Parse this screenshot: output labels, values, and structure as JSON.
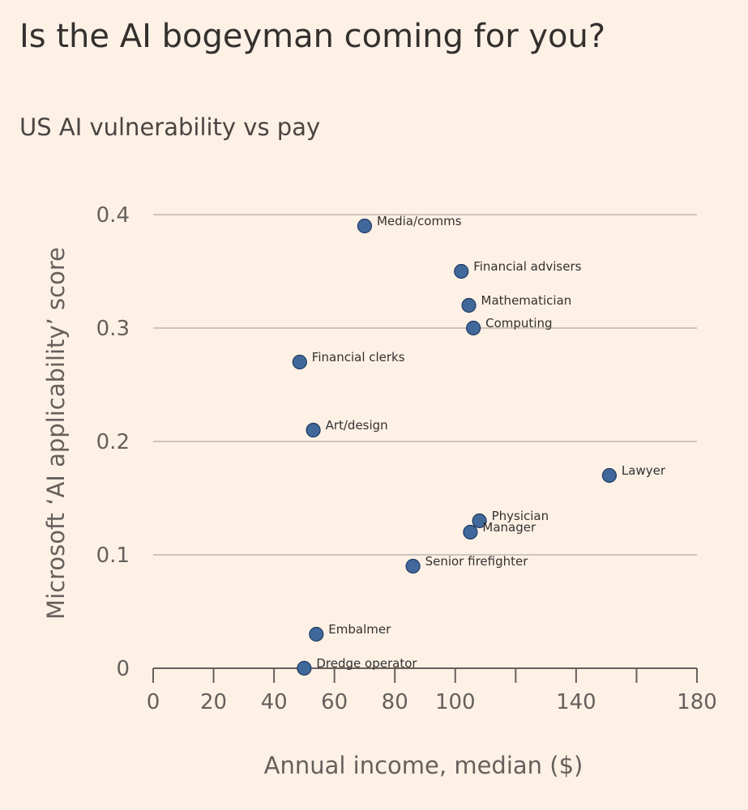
{
  "chart_data": {
    "type": "scatter",
    "title": "Is the AI bogeyman coming for you?",
    "subtitle": "US AI vulnerability vs pay",
    "xlabel": "Annual income, median ($)",
    "ylabel": "Microsoft ‘AI applicability’ score",
    "xlim": [
      0,
      180
    ],
    "ylim": [
      0,
      0.4
    ],
    "x_ticks": [
      0,
      20,
      40,
      60,
      80,
      100,
      120,
      140,
      160,
      180
    ],
    "x_tick_labels": [
      "0",
      "20",
      "40",
      "60",
      "80",
      "100",
      "",
      "140",
      "",
      "180"
    ],
    "y_ticks": [
      0,
      0.1,
      0.2,
      0.3,
      0.4
    ],
    "y_tick_labels": [
      "0",
      "0.1",
      "0.2",
      "0.3",
      "0.4"
    ],
    "grid": "horizontal",
    "marker_color": "#41689b",
    "points": [
      {
        "label": "Media/comms",
        "x": 70,
        "y": 0.39
      },
      {
        "label": "Financial advisers",
        "x": 102,
        "y": 0.35
      },
      {
        "label": "Mathematician",
        "x": 104.5,
        "y": 0.32
      },
      {
        "label": "Computing",
        "x": 106,
        "y": 0.3
      },
      {
        "label": "Financial clerks",
        "x": 48.5,
        "y": 0.27
      },
      {
        "label": "Art/design",
        "x": 53,
        "y": 0.21
      },
      {
        "label": "Lawyer",
        "x": 151,
        "y": 0.17
      },
      {
        "label": "Physician",
        "x": 108,
        "y": 0.13
      },
      {
        "label": "Manager",
        "x": 105,
        "y": 0.12
      },
      {
        "label": "Senior firefighter",
        "x": 86,
        "y": 0.09
      },
      {
        "label": "Embalmer",
        "x": 54,
        "y": 0.03
      },
      {
        "label": "Dredge operator",
        "x": 50,
        "y": 0.0
      }
    ]
  }
}
